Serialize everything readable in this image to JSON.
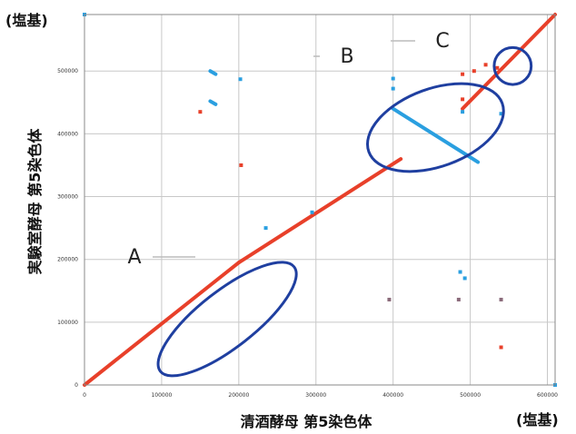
{
  "chart_data": {
    "type": "scatter",
    "x_unit_label": "(塩基)",
    "y_unit_label": "(塩基)",
    "xlabel": "清酒酵母 第5染色体",
    "ylabel": "実験室酵母 第5染色体",
    "xlim": [
      0,
      610000
    ],
    "ylim": [
      0,
      590000
    ],
    "x_ticks": [
      "0",
      "100000",
      "200000",
      "300000",
      "400000",
      "500000",
      "600000"
    ],
    "y_ticks": [
      "0",
      "100000",
      "200000",
      "300000",
      "400000",
      "500000"
    ],
    "grid": true,
    "colors": {
      "forward": "#e8402a",
      "reverse": "#2a9fe0",
      "highlight": "#1f3fa0",
      "grid": "#c8c8c8"
    },
    "series": [
      {
        "name": "",
        "color": "#e8402a",
        "segments": [
          {
            "x": [
              0,
              200000
            ],
            "y": [
              0,
              195000
            ]
          },
          {
            "x": [
              200000,
              410000
            ],
            "y": [
              195000,
              360000
            ]
          },
          {
            "x": [
              490000,
              610000
            ],
            "y": [
              440000,
              590000
            ]
          }
        ],
        "points": [
          {
            "x": 150000,
            "y": 435000
          },
          {
            "x": 203000,
            "y": 350000
          },
          {
            "x": 490000,
            "y": 495000
          },
          {
            "x": 505000,
            "y": 500000
          },
          {
            "x": 520000,
            "y": 510000
          },
          {
            "x": 490000,
            "y": 455000
          },
          {
            "x": 540000,
            "y": 60000
          },
          {
            "x": 535000,
            "y": 505000
          }
        ]
      },
      {
        "name": "",
        "color": "#2a9fe0",
        "segments": [
          {
            "x": [
              400000,
              510000
            ],
            "y": [
              440000,
              355000
            ]
          },
          {
            "x": [
              163000,
              170000
            ],
            "y": [
              500000,
              495000
            ]
          },
          {
            "x": [
              163000,
              170000
            ],
            "y": [
              452000,
              447000
            ]
          }
        ],
        "points": [
          {
            "x": 0,
            "y": 590000
          },
          {
            "x": 610000,
            "y": 0
          },
          {
            "x": 202000,
            "y": 487000
          },
          {
            "x": 235000,
            "y": 250000
          },
          {
            "x": 295000,
            "y": 275000
          },
          {
            "x": 400000,
            "y": 488000
          },
          {
            "x": 400000,
            "y": 472000
          },
          {
            "x": 490000,
            "y": 435000
          },
          {
            "x": 540000,
            "y": 432000
          },
          {
            "x": 487000,
            "y": 180000
          },
          {
            "x": 493000,
            "y": 170000
          }
        ]
      },
      {
        "name": "",
        "color": "#8a6a7a",
        "points": [
          {
            "x": 395000,
            "y": 136000
          },
          {
            "x": 485000,
            "y": 136000
          },
          {
            "x": 540000,
            "y": 136000
          }
        ]
      }
    ],
    "annotations": [
      {
        "label": "A",
        "shape": "ellipse",
        "cx": 185000,
        "cy": 105000,
        "rx": 110000,
        "ry": 45000,
        "rotate": -38
      },
      {
        "label": "B",
        "shape": "ellipse",
        "cx": 455000,
        "cy": 410000,
        "rx": 92000,
        "ry": 62000,
        "rotate": -20
      },
      {
        "label": "C",
        "shape": "circle",
        "cx": 555000,
        "cy": 508000,
        "r": 24000
      }
    ]
  }
}
